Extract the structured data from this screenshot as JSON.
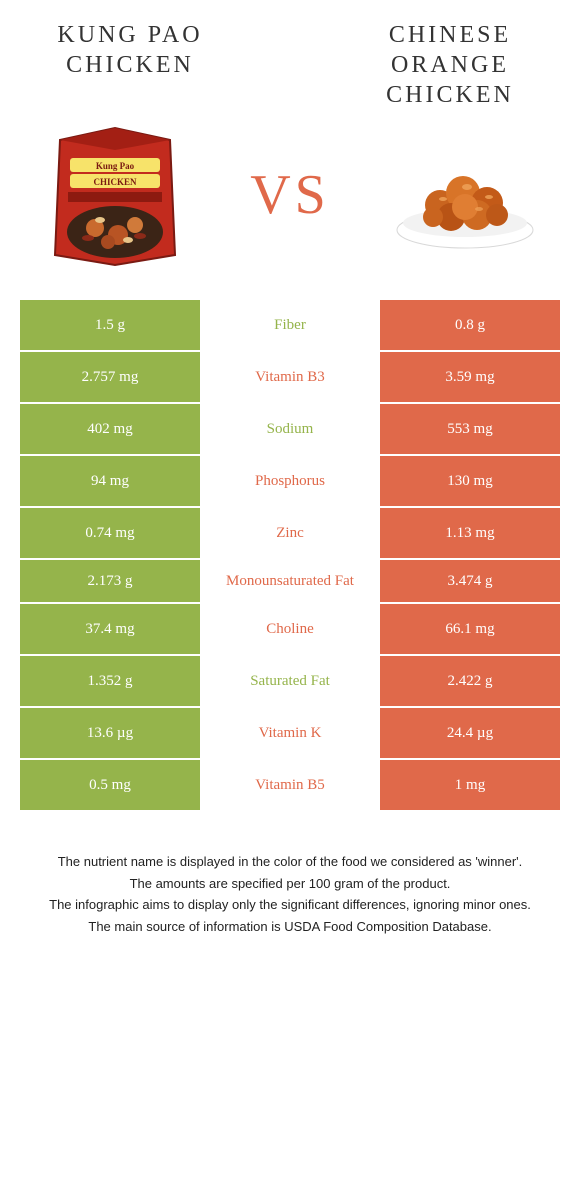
{
  "colors": {
    "left": "#95b44b",
    "right": "#e0694a",
    "mid_bg": "#ffffff",
    "vs": "#e0694a",
    "title": "#333333"
  },
  "food_left": {
    "title": "KUNG PAO CHICKEN"
  },
  "food_right": {
    "title": "CHINESE ORANGE CHICKEN"
  },
  "vs_label": "VS",
  "rows": [
    {
      "nutrient": "Fiber",
      "left": "1.5 g",
      "right": "0.8 g",
      "winner": "left"
    },
    {
      "nutrient": "Vitamin B3",
      "left": "2.757 mg",
      "right": "3.59 mg",
      "winner": "right"
    },
    {
      "nutrient": "Sodium",
      "left": "402 mg",
      "right": "553 mg",
      "winner": "left"
    },
    {
      "nutrient": "Phosphorus",
      "left": "94 mg",
      "right": "130 mg",
      "winner": "right"
    },
    {
      "nutrient": "Zinc",
      "left": "0.74 mg",
      "right": "1.13 mg",
      "winner": "right"
    },
    {
      "nutrient": "Monounsaturated Fat",
      "left": "2.173 g",
      "right": "3.474 g",
      "winner": "right",
      "tall": true
    },
    {
      "nutrient": "Choline",
      "left": "37.4 mg",
      "right": "66.1 mg",
      "winner": "right"
    },
    {
      "nutrient": "Saturated Fat",
      "left": "1.352 g",
      "right": "2.422 g",
      "winner": "left"
    },
    {
      "nutrient": "Vitamin K",
      "left": "13.6 µg",
      "right": "24.4 µg",
      "winner": "right"
    },
    {
      "nutrient": "Vitamin B5",
      "left": "0.5 mg",
      "right": "1 mg",
      "winner": "right"
    }
  ],
  "notes": [
    "The nutrient name is displayed in the color of the food we considered as 'winner'.",
    "The amounts are specified per 100 gram of the product.",
    "The infographic aims to display only the significant differences, ignoring minor ones.",
    "The main source of information is USDA Food Composition Database."
  ]
}
